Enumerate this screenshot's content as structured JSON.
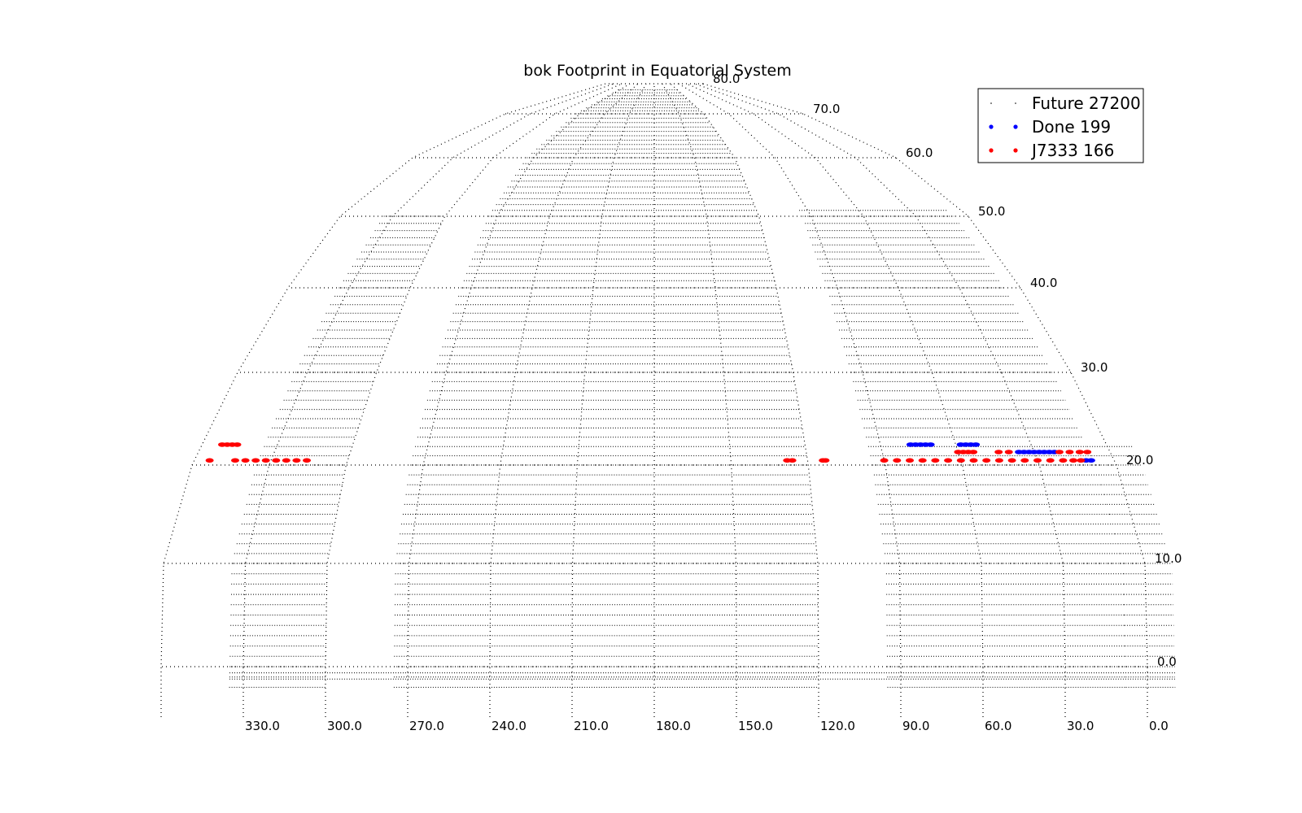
{
  "chart_data": {
    "type": "scatter",
    "title": "bok  Footprint in Equatorial System",
    "projection": "conic equatorial map, RA decreasing left to right",
    "xlabel": "",
    "ylabel": "",
    "ra_range": [
      0,
      360
    ],
    "dec_range": [
      0,
      80
    ],
    "grid": true,
    "ra_tick_labels": [
      "330.0",
      "300.0",
      "270.0",
      "240.0",
      "210.0",
      "180.0",
      "150.0",
      "120.0",
      "90.0",
      "60.0",
      "30.0",
      "0.0"
    ],
    "dec_tick_labels": [
      "0.0",
      "10.0",
      "20.0",
      "30.0",
      "40.0",
      "50.0",
      "60.0",
      "70.0",
      "80.0"
    ],
    "legend_position": "top-right",
    "colors": {
      "future": "#000000",
      "done": "#0000ff",
      "j7333": "#ff0000"
    },
    "series": [
      {
        "name": "Future 27200",
        "color": "#000000",
        "description": "survey footprint rows",
        "regions": [
          {
            "ra_range": [
              -10,
              8
            ],
            "dec_range": [
              -2,
              22
            ]
          },
          {
            "ra_range": [
              8,
              95
            ],
            "dec_range": [
              -2,
              51
            ]
          },
          {
            "ra_range": [
              120,
              275
            ],
            "dec_range": [
              -2,
              78
            ]
          },
          {
            "ra_range": [
              300,
              335
            ],
            "dec_range": [
              -2,
              50
            ]
          }
        ]
      },
      {
        "name": "Done 199",
        "color": "#0000ff",
        "points": [
          [
            78,
            22.2
          ],
          [
            76,
            22.2
          ],
          [
            74,
            22.2
          ],
          [
            72,
            22.2
          ],
          [
            70,
            22.2
          ],
          [
            58,
            22.2
          ],
          [
            56,
            22.2
          ],
          [
            54,
            22.2
          ],
          [
            52,
            22.2
          ],
          [
            36,
            21.4
          ],
          [
            34,
            21.4
          ],
          [
            32,
            21.4
          ],
          [
            30,
            21.4
          ],
          [
            28,
            21.4
          ],
          [
            26,
            21.4
          ],
          [
            24,
            21.4
          ],
          [
            22,
            21.4
          ],
          [
            11,
            20.5
          ],
          [
            9,
            20.5
          ]
        ]
      },
      {
        "name": "J7333 166",
        "color": "#ff0000",
        "points": [
          [
            352,
            22.2
          ],
          [
            350,
            22.2
          ],
          [
            348,
            22.2
          ],
          [
            346,
            22.2
          ],
          [
            354,
            20.5
          ],
          [
            344,
            20.5
          ],
          [
            340,
            20.5
          ],
          [
            336,
            20.5
          ],
          [
            332,
            20.5
          ],
          [
            328,
            20.5
          ],
          [
            324,
            20.5
          ],
          [
            320,
            20.5
          ],
          [
            316,
            20.5
          ],
          [
            128,
            20.5
          ],
          [
            126,
            20.5
          ],
          [
            114,
            20.5
          ],
          [
            113,
            20.5
          ],
          [
            90,
            20.5
          ],
          [
            85,
            20.5
          ],
          [
            80,
            20.5
          ],
          [
            75,
            20.5
          ],
          [
            70,
            20.5
          ],
          [
            65,
            20.5
          ],
          [
            60,
            20.5
          ],
          [
            55,
            20.5
          ],
          [
            50,
            20.5
          ],
          [
            45,
            20.5
          ],
          [
            40,
            20.5
          ],
          [
            35,
            20.5
          ],
          [
            30,
            20.5
          ],
          [
            25,
            20.5
          ],
          [
            20,
            20.5
          ],
          [
            16,
            20.5
          ],
          [
            13,
            20.5
          ],
          [
            60,
            21.4
          ],
          [
            58,
            21.4
          ],
          [
            56,
            21.4
          ],
          [
            54,
            21.4
          ],
          [
            44,
            21.4
          ],
          [
            40,
            21.4
          ],
          [
            20,
            21.4
          ],
          [
            16,
            21.4
          ],
          [
            12,
            21.4
          ],
          [
            9,
            21.4
          ]
        ]
      }
    ]
  }
}
